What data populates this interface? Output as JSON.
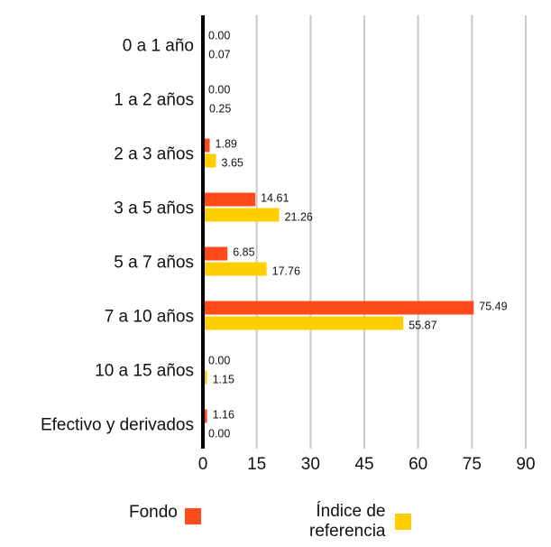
{
  "chart_data": {
    "type": "bar",
    "orientation": "horizontal",
    "categories": [
      "0 a 1 año",
      "1 a 2 años",
      "2 a 3 años",
      "3 a 5 años",
      "5 a 7 años",
      "7 a 10 años",
      "10 a 15 años",
      "Efectivo y derivados"
    ],
    "series": [
      {
        "name": "Fondo",
        "color": "#FF4A1C",
        "values": [
          0.0,
          0.0,
          1.89,
          14.61,
          6.85,
          75.49,
          0.0,
          1.16
        ]
      },
      {
        "name": "Índice de referencia",
        "color": "#FFCE00",
        "values": [
          0.07,
          0.25,
          3.65,
          21.26,
          17.76,
          55.87,
          1.15,
          0.0
        ]
      }
    ],
    "value_labels": [
      [
        "0.00",
        "0.00",
        "1.89",
        "14.61",
        "6.85",
        "75.49",
        "0.00",
        "1.16"
      ],
      [
        "0.07",
        "0.25",
        "3.65",
        "21.26",
        "17.76",
        "55.87",
        "1.15",
        "0.00"
      ]
    ],
    "xlim": [
      0,
      90
    ],
    "xticks": [
      0,
      15,
      30,
      45,
      60,
      75,
      90
    ],
    "xtick_labels": [
      "0",
      "15",
      "30",
      "45",
      "60",
      "75",
      "90"
    ],
    "grid": "vertical",
    "legend_position": "bottom",
    "grid_color": "#C8C8C8",
    "axis_color": "#000000"
  },
  "legend": {
    "fondo": "Fondo",
    "indice_line1": "Índice de",
    "indice_line2": "referencia"
  }
}
